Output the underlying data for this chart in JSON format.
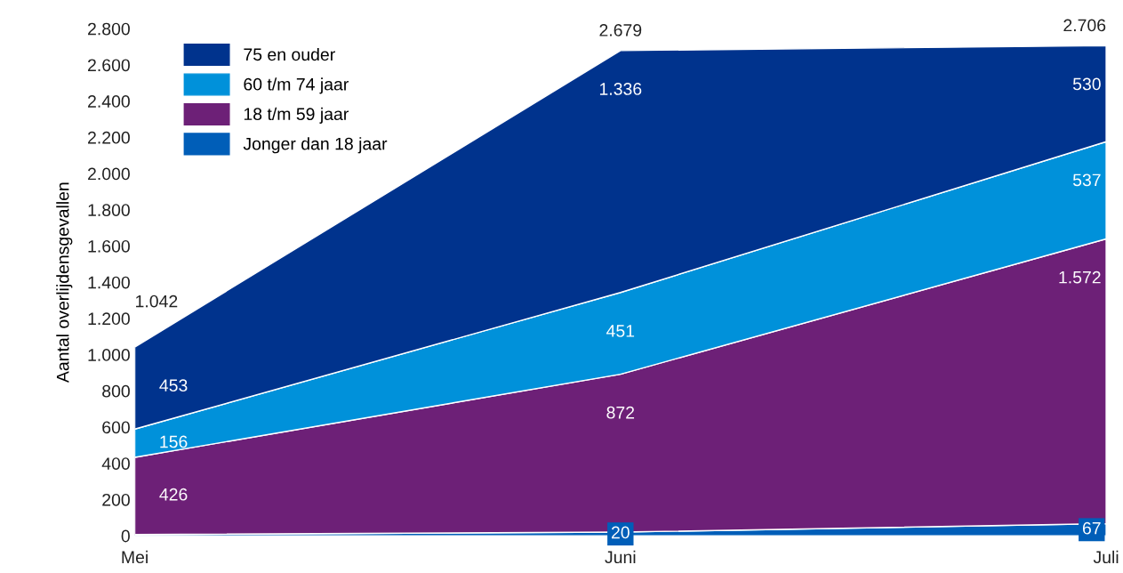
{
  "chart_data": {
    "type": "area",
    "stacked": true,
    "ylabel": "Aantal overlijdensgevallen",
    "categories": [
      "Mei",
      "Juni",
      "Juli"
    ],
    "series": [
      {
        "name": "Jonger dan 18 jaar",
        "color": "#005eb8",
        "values": [
          7,
          20,
          67
        ],
        "value_labels": [
          null,
          "20",
          "67"
        ]
      },
      {
        "name": "18 t/m 59 jaar",
        "color": "#6d2077",
        "values": [
          426,
          872,
          1572
        ],
        "value_labels": [
          "426",
          "872",
          "1.572"
        ]
      },
      {
        "name": "60 t/m 74 jaar",
        "color": "#0091da",
        "values": [
          156,
          451,
          537
        ],
        "value_labels": [
          "156",
          "451",
          "537"
        ]
      },
      {
        "name": "75 en ouder",
        "color": "#00338d",
        "values": [
          453,
          1336,
          530
        ],
        "value_labels": [
          "453",
          "1.336",
          "530"
        ]
      }
    ],
    "totals": [
      "1.042",
      "2.679",
      "2.706"
    ],
    "ylim": [
      0,
      2800
    ],
    "yticks": [
      0,
      200,
      400,
      600,
      800,
      {
        "value": 1000,
        "label": "1.000"
      },
      {
        "value": 1200,
        "label": "1.200"
      },
      {
        "value": 1400,
        "label": "1.400"
      },
      {
        "value": 1600,
        "label": "1.600"
      },
      {
        "value": 1800,
        "label": "1.800"
      },
      {
        "value": 2000,
        "label": "2.000"
      },
      {
        "value": 2200,
        "label": "2.200"
      },
      {
        "value": 2400,
        "label": "2.400"
      },
      {
        "value": 2600,
        "label": "2.600"
      },
      {
        "value": 2800,
        "label": "2.800"
      }
    ],
    "grid": false,
    "legend": "top left"
  }
}
